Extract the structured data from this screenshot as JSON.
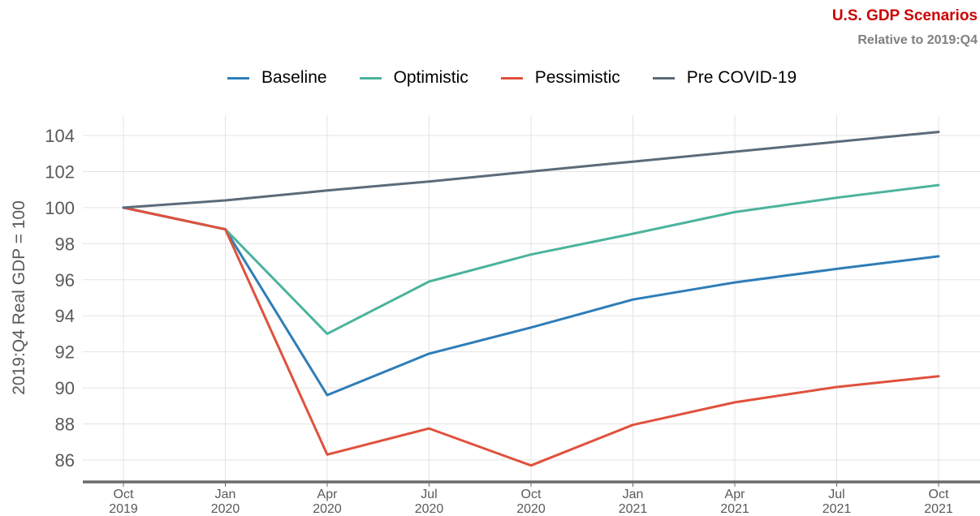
{
  "chart_data": {
    "type": "line",
    "title": "U.S. GDP Scenarios",
    "subtitle": "Relative to 2019:Q4",
    "ylabel": "2019:Q4 Real GDP = 100",
    "xlabel": "",
    "categories": [
      [
        "Oct",
        "2019"
      ],
      [
        "Jan",
        "2020"
      ],
      [
        "Apr",
        "2020"
      ],
      [
        "Jul",
        "2020"
      ],
      [
        "Oct",
        "2020"
      ],
      [
        "Jan",
        "2021"
      ],
      [
        "Apr",
        "2021"
      ],
      [
        "Jul",
        "2021"
      ],
      [
        "Oct",
        "2021"
      ]
    ],
    "yticks": [
      86,
      88,
      90,
      92,
      94,
      96,
      98,
      100,
      102,
      104
    ],
    "ylim": [
      84.8,
      105.3
    ],
    "grid": true,
    "legend_position": "top",
    "series": [
      {
        "name": "Baseline",
        "color": "#2e7db8",
        "values": [
          100,
          98.8,
          89.6,
          91.9,
          93.35,
          94.9,
          95.85,
          96.6,
          97.3
        ]
      },
      {
        "name": "Optimistic",
        "color": "#4cb39e",
        "values": [
          100,
          98.8,
          93.0,
          95.9,
          97.4,
          98.55,
          99.75,
          100.55,
          101.25
        ]
      },
      {
        "name": "Pessimistic",
        "color": "#e0513d",
        "values": [
          100,
          98.8,
          86.3,
          87.75,
          85.7,
          87.95,
          89.2,
          90.05,
          90.65
        ]
      },
      {
        "name": "Pre COVID-19",
        "color": "#5b6b7a",
        "values": [
          100,
          100.4,
          100.95,
          101.45,
          102.0,
          102.55,
          103.1,
          103.65,
          104.2
        ]
      }
    ]
  },
  "colors": {
    "title": "#cc0000",
    "subtitle": "#7f7f7f",
    "axis_text": "#595959",
    "grid": "#e3e3e3",
    "baseline_axis": "#6b6b6b"
  }
}
